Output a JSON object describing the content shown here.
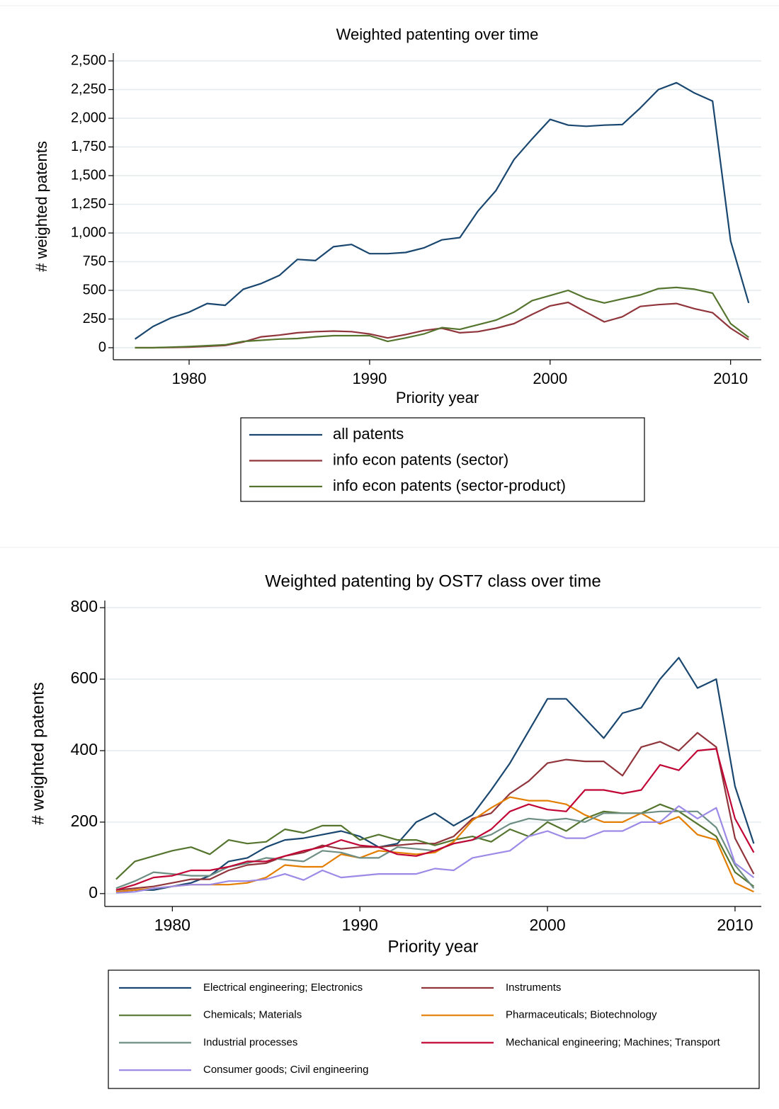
{
  "chart_data": [
    {
      "type": "line",
      "title": "Weighted patenting over time",
      "x_label": "Priority year",
      "y_label": "# weighted patents",
      "x": [
        1977,
        1978,
        1979,
        1980,
        1981,
        1982,
        1983,
        1984,
        1985,
        1986,
        1987,
        1988,
        1989,
        1990,
        1991,
        1992,
        1993,
        1994,
        1995,
        1996,
        1997,
        1998,
        1999,
        2000,
        2001,
        2002,
        2003,
        2004,
        2005,
        2006,
        2007,
        2008,
        2009,
        2010,
        2011
      ],
      "series": [
        {
          "name": "all patents",
          "color": "#1a476f",
          "values": [
            75,
            185,
            260,
            310,
            385,
            370,
            510,
            560,
            630,
            770,
            760,
            880,
            900,
            820,
            820,
            830,
            870,
            940,
            960,
            1190,
            1370,
            1640,
            1820,
            1990,
            1940,
            1930,
            1940,
            1945,
            2090,
            2250,
            2310,
            2220,
            2150,
            930,
            390
          ]
        },
        {
          "name": "info econ patents (sector)",
          "color": "#90353b",
          "values": [
            0,
            0,
            2,
            5,
            12,
            20,
            50,
            95,
            110,
            130,
            140,
            145,
            140,
            120,
            85,
            115,
            150,
            170,
            130,
            140,
            170,
            210,
            290,
            365,
            395,
            310,
            225,
            270,
            360,
            375,
            385,
            340,
            305,
            170,
            70
          ]
        },
        {
          "name": "info econ patents (sector-product)",
          "color": "#55752f",
          "values": [
            0,
            0,
            5,
            10,
            18,
            25,
            55,
            65,
            75,
            80,
            95,
            105,
            105,
            105,
            55,
            85,
            120,
            175,
            160,
            200,
            240,
            310,
            410,
            455,
            500,
            430,
            390,
            425,
            460,
            515,
            525,
            510,
            475,
            210,
            90
          ]
        }
      ],
      "xlim": [
        1975.8,
        2011.7
      ],
      "xticks": [
        1980,
        1990,
        2000,
        2010
      ],
      "ylim": [
        -105,
        2568
      ],
      "yticks": [
        0,
        250,
        500,
        750,
        {
          "value": 1000,
          "label": "1,000"
        },
        {
          "value": 1250,
          "label": "1,250"
        },
        {
          "value": 1500,
          "label": "1,500"
        },
        {
          "value": 1750,
          "label": "1,750"
        },
        {
          "value": 2000,
          "label": "2,000"
        },
        {
          "value": 2250,
          "label": "2,250"
        },
        {
          "value": 2500,
          "label": "2,500"
        }
      ],
      "grid": true,
      "legend": "bottom",
      "legend_columns": 1
    },
    {
      "type": "line",
      "title": "Weighted patenting by OST7 class over time",
      "x_label": "Priority year",
      "y_label": "# weighted patents",
      "x": [
        1977,
        1978,
        1979,
        1980,
        1981,
        1982,
        1983,
        1984,
        1985,
        1986,
        1987,
        1988,
        1989,
        1990,
        1991,
        1992,
        1993,
        1994,
        1995,
        1996,
        1997,
        1998,
        1999,
        2000,
        2001,
        2002,
        2003,
        2004,
        2005,
        2006,
        2007,
        2008,
        2009,
        2010,
        2011
      ],
      "series": [
        {
          "name": "Electrical engineering; Electronics",
          "color": "#1a476f",
          "values": [
            5,
            10,
            10,
            20,
            30,
            50,
            90,
            100,
            130,
            150,
            155,
            165,
            175,
            160,
            130,
            140,
            200,
            225,
            190,
            220,
            290,
            365,
            455,
            545,
            545,
            490,
            435,
            505,
            520,
            600,
            660,
            575,
            600,
            300,
            140
          ]
        },
        {
          "name": "Instruments",
          "color": "#90353b",
          "values": [
            10,
            15,
            20,
            30,
            40,
            40,
            65,
            80,
            85,
            105,
            115,
            135,
            125,
            130,
            130,
            135,
            140,
            140,
            160,
            210,
            225,
            280,
            315,
            365,
            375,
            370,
            370,
            330,
            410,
            425,
            400,
            450,
            410,
            155,
            55
          ]
        },
        {
          "name": "Chemicals; Materials",
          "color": "#55752f",
          "values": [
            40,
            90,
            105,
            120,
            130,
            110,
            150,
            140,
            145,
            180,
            170,
            190,
            190,
            150,
            165,
            150,
            150,
            135,
            150,
            160,
            145,
            180,
            160,
            200,
            175,
            210,
            230,
            225,
            225,
            250,
            230,
            195,
            160,
            60,
            20
          ]
        },
        {
          "name": "Pharmaceuticals; Biotechnology",
          "color": "#e37e00",
          "values": [
            5,
            10,
            15,
            20,
            25,
            25,
            25,
            30,
            45,
            80,
            75,
            75,
            110,
            100,
            120,
            115,
            110,
            115,
            145,
            205,
            240,
            270,
            260,
            260,
            250,
            220,
            200,
            200,
            225,
            195,
            215,
            165,
            150,
            30,
            5
          ]
        },
        {
          "name": "Industrial processes",
          "color": "#6e8e84",
          "values": [
            15,
            35,
            60,
            55,
            50,
            50,
            75,
            85,
            100,
            95,
            90,
            120,
            115,
            100,
            100,
            130,
            125,
            120,
            140,
            150,
            165,
            195,
            210,
            205,
            210,
            200,
            225,
            225,
            225,
            230,
            230,
            230,
            185,
            80,
            15
          ]
        },
        {
          "name": "Mechanical engineering; Machines; Transport",
          "color": "#c10534",
          "values": [
            10,
            25,
            45,
            50,
            65,
            65,
            75,
            90,
            90,
            105,
            120,
            130,
            150,
            135,
            130,
            110,
            105,
            120,
            140,
            150,
            180,
            230,
            250,
            235,
            230,
            290,
            290,
            280,
            290,
            360,
            345,
            400,
            405,
            210,
            115
          ]
        },
        {
          "name": "Consumer goods; Civil engineering",
          "color": "#9c8ae6",
          "values": [
            2,
            5,
            15,
            20,
            25,
            25,
            35,
            35,
            40,
            55,
            38,
            65,
            45,
            50,
            55,
            55,
            55,
            70,
            65,
            100,
            110,
            120,
            160,
            175,
            155,
            155,
            175,
            175,
            200,
            200,
            245,
            210,
            240,
            85,
            45
          ]
        }
      ],
      "xlim": [
        1976.4,
        2011.4
      ],
      "xticks": [
        1980,
        1990,
        2000,
        2010
      ],
      "ylim": [
        -36,
        820
      ],
      "yticks": [
        0,
        200,
        400,
        600,
        800
      ],
      "grid": true,
      "legend": "bottom",
      "legend_columns": 2
    }
  ]
}
